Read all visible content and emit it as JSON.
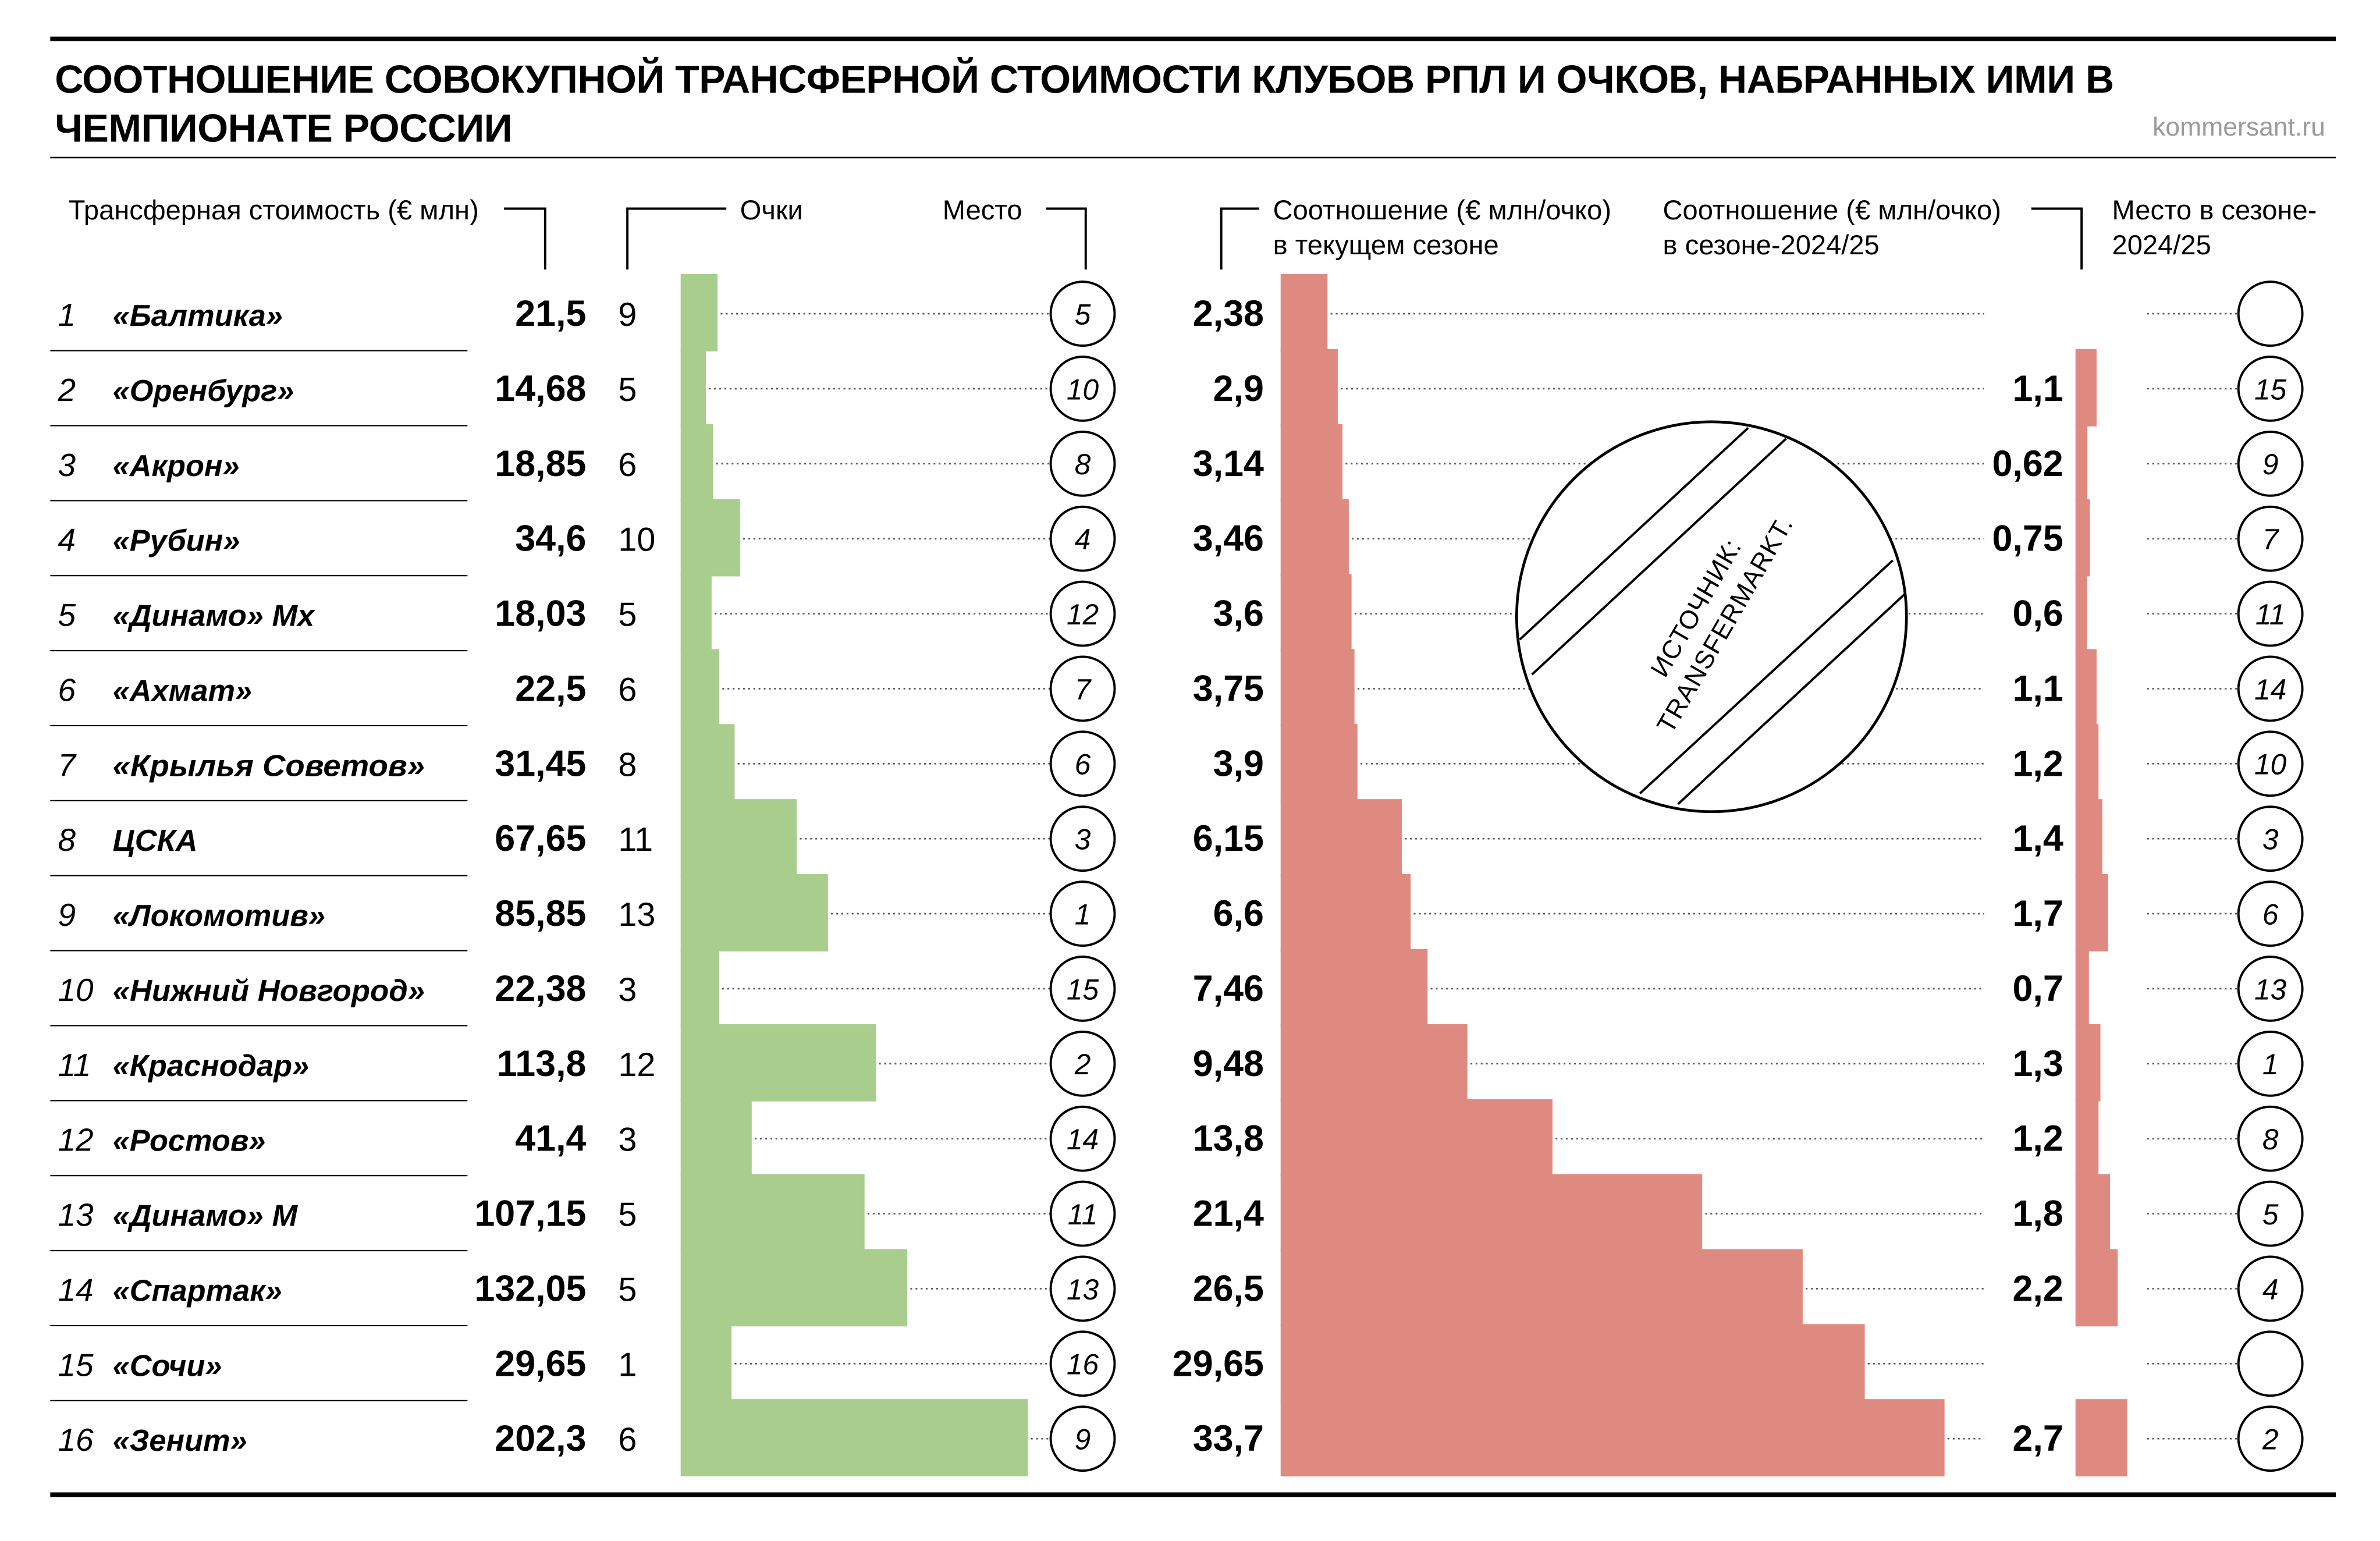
{
  "title": "СООТНОШЕНИЕ СОВОКУПНОЙ ТРАНСФЕРНОЙ СТОИМОСТИ КЛУБОВ РПЛ И ОЧКОВ, НАБРАННЫХ ИМИ В ЧЕМПИОНАТЕ РОССИИ",
  "site": "kommersant.ru",
  "headers": {
    "value": "Трансферная стоимость (€ млн)",
    "points": "Очки",
    "place": "Место",
    "ratio_current_1": "Соотношение (€ млн/очко)",
    "ratio_current_2": "в текущем сезоне",
    "ratio_prev_1": "Соотношение (€ млн/очко)",
    "ratio_prev_2": "в сезоне-2024/25",
    "place_prev_1": "Место в сезоне-",
    "place_prev_2": "2024/25"
  },
  "source": {
    "line1": "ИСТОЧНИК:",
    "line2": "TRANSFERMARKT."
  },
  "colors": {
    "points_bar": "#a8cd8c",
    "ratio_bar": "#de8a80",
    "leader": "#555555",
    "rule": "#000000"
  },
  "chart_data": {
    "type": "bar",
    "categories": [
      "«Балтика»",
      "«Оренбург»",
      "«Акрон»",
      "«Рубин»",
      "«Динамо» Мх",
      "«Ахмат»",
      "«Крылья Советов»",
      "ЦСКА",
      "«Локомотив»",
      "«Нижний Новгород»",
      "«Краснодар»",
      "«Ростов»",
      "«Динамо» М",
      "«Спартак»",
      "«Сочи»",
      "«Зенит»"
    ],
    "rows": [
      {
        "n": "1",
        "club": "«Балтика»",
        "value": "21,5",
        "points": "9",
        "place": "5",
        "ratio": "2,38",
        "ratio_prev": "",
        "place_prev": ""
      },
      {
        "n": "2",
        "club": "«Оренбург»",
        "value": "14,68",
        "points": "5",
        "place": "10",
        "ratio": "2,9",
        "ratio_prev": "1,1",
        "place_prev": "15"
      },
      {
        "n": "3",
        "club": "«Акрон»",
        "value": "18,85",
        "points": "6",
        "place": "8",
        "ratio": "3,14",
        "ratio_prev": "0,62",
        "place_prev": "9"
      },
      {
        "n": "4",
        "club": "«Рубин»",
        "value": "34,6",
        "points": "10",
        "place": "4",
        "ratio": "3,46",
        "ratio_prev": "0,75",
        "place_prev": "7"
      },
      {
        "n": "5",
        "club": "«Динамо» Мх",
        "value": "18,03",
        "points": "5",
        "place": "12",
        "ratio": "3,6",
        "ratio_prev": "0,6",
        "place_prev": "11"
      },
      {
        "n": "6",
        "club": "«Ахмат»",
        "value": "22,5",
        "points": "6",
        "place": "7",
        "ratio": "3,75",
        "ratio_prev": "1,1",
        "place_prev": "14"
      },
      {
        "n": "7",
        "club": "«Крылья Советов»",
        "value": "31,45",
        "points": "8",
        "place": "6",
        "ratio": "3,9",
        "ratio_prev": "1,2",
        "place_prev": "10"
      },
      {
        "n": "8",
        "club": "ЦСКА",
        "value": "67,65",
        "points": "11",
        "place": "3",
        "ratio": "6,15",
        "ratio_prev": "1,4",
        "place_prev": "3"
      },
      {
        "n": "9",
        "club": "«Локомотив»",
        "value": "85,85",
        "points": "13",
        "place": "1",
        "ratio": "6,6",
        "ratio_prev": "1,7",
        "place_prev": "6"
      },
      {
        "n": "10",
        "club": "«Нижний Новгород»",
        "value": "22,38",
        "points": "3",
        "place": "15",
        "ratio": "7,46",
        "ratio_prev": "0,7",
        "place_prev": "13"
      },
      {
        "n": "11",
        "club": "«Краснодар»",
        "value": "113,8",
        "points": "12",
        "place": "2",
        "ratio": "9,48",
        "ratio_prev": "1,3",
        "place_prev": "1"
      },
      {
        "n": "12",
        "club": "«Ростов»",
        "value": "41,4",
        "points": "3",
        "place": "14",
        "ratio": "13,8",
        "ratio_prev": "1,2",
        "place_prev": "8"
      },
      {
        "n": "13",
        "club": "«Динамо» М",
        "value": "107,15",
        "points": "5",
        "place": "11",
        "ratio": "21,4",
        "ratio_prev": "1,8",
        "place_prev": "5"
      },
      {
        "n": "14",
        "club": "«Спартак»",
        "value": "132,05",
        "points": "5",
        "place": "13",
        "ratio": "26,5",
        "ratio_prev": "2,2",
        "place_prev": "4"
      },
      {
        "n": "15",
        "club": "«Сочи»",
        "value": "29,65",
        "points": "1",
        "place": "16",
        "ratio": "29,65",
        "ratio_prev": "",
        "place_prev": ""
      },
      {
        "n": "16",
        "club": "«Зенит»",
        "value": "202,3",
        "points": "6",
        "place": "9",
        "ratio": "33,7",
        "ratio_prev": "2,7",
        "place_prev": "2"
      }
    ],
    "series": [
      {
        "values": [
          21.5,
          14.68,
          18.85,
          34.6,
          18.03,
          22.5,
          31.45,
          67.65,
          85.85,
          22.38,
          113.8,
          41.4,
          107.15,
          132.05,
          29.65,
          202.3
        ]
      },
      {
        "values": [
          2.38,
          2.9,
          3.14,
          3.46,
          3.6,
          3.75,
          3.9,
          6.15,
          6.6,
          7.46,
          9.48,
          13.8,
          21.4,
          26.5,
          29.65,
          33.7
        ]
      },
      {
        "values": [
          null,
          1.1,
          0.62,
          0.75,
          0.6,
          1.1,
          1.2,
          1.4,
          1.7,
          0.7,
          1.3,
          1.2,
          1.8,
          2.2,
          null,
          2.7
        ]
      }
    ]
  }
}
